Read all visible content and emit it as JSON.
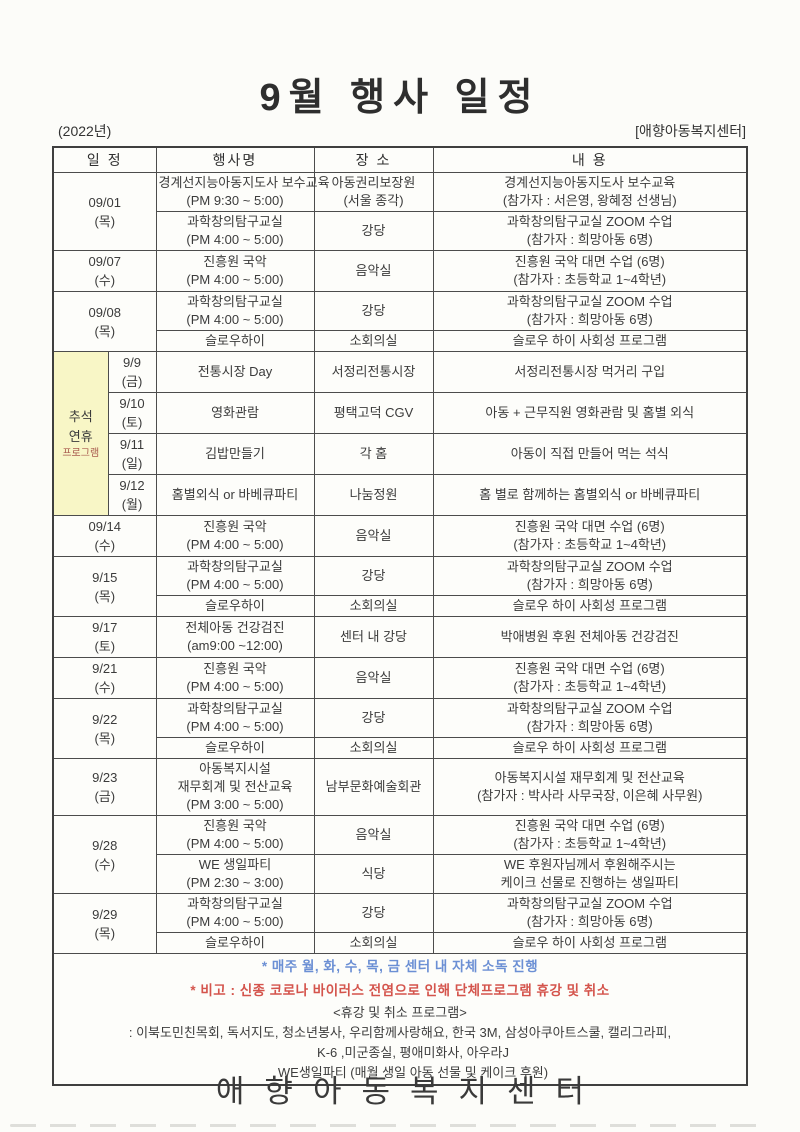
{
  "page": {
    "title": "9월 행사 일정",
    "year_label": "(2022년)",
    "org_label": "[애향아동복지센터]",
    "footer_org": "애향아동복지센터"
  },
  "colors": {
    "note_blue": "#6b8fd4",
    "note_red": "#d4544c",
    "holiday_bg": "#f8f6c6",
    "holiday_label_red": "#a85a4e"
  },
  "table": {
    "headers": {
      "date": "일 정",
      "event": "행사명",
      "place": "장 소",
      "detail": "내 용"
    },
    "holiday_label": [
      "추석",
      "연휴",
      "프로그램"
    ],
    "groups": [
      {
        "date": "09/01",
        "day": "(목)",
        "events": [
          {
            "name": [
              "경계선지능아동지도사 보수교육",
              "(PM 9:30 ~ 5:00)"
            ],
            "place": [
              "아동권리보장원",
              "(서울 종각)"
            ],
            "detail": [
              "경계선지능아동지도사 보수교육",
              "(참가자 : 서은영, 왕혜정 선생님)"
            ]
          },
          {
            "name": [
              "과학창의탐구교실",
              "(PM 4:00 ~ 5:00)"
            ],
            "place": [
              "강당"
            ],
            "detail": [
              "과학창의탐구교실 ZOOM 수업",
              "(참가자 : 희망아동 6명)"
            ]
          }
        ]
      },
      {
        "date": "09/07",
        "day": "(수)",
        "events": [
          {
            "name": [
              "진흥원 국악",
              "(PM 4:00 ~ 5:00)"
            ],
            "place": [
              "음악실"
            ],
            "detail": [
              "진흥원 국악 대면 수업 (6명)",
              "(참가자 : 초등학교 1~4학년)"
            ]
          }
        ]
      },
      {
        "date": "09/08",
        "day": "(목)",
        "events": [
          {
            "name": [
              "과학창의탐구교실",
              "(PM 4:00 ~ 5:00)"
            ],
            "place": [
              "강당"
            ],
            "detail": [
              "과학창의탐구교실 ZOOM 수업",
              "(참가자 : 희망아동 6명)"
            ]
          },
          {
            "name": [
              "슬로우하이"
            ],
            "place": [
              "소회의실"
            ],
            "detail": [
              "슬로우 하이 사회성 프로그램"
            ]
          }
        ]
      },
      {
        "holiday": true,
        "date": "9/9",
        "day": "(금)",
        "events": [
          {
            "name": [
              "전통시장 Day"
            ],
            "place": [
              "서정리전통시장"
            ],
            "detail": [
              "서정리전통시장 먹거리 구입"
            ]
          }
        ]
      },
      {
        "holiday": true,
        "date": "9/10",
        "day": "(토)",
        "events": [
          {
            "name": [
              "영화관람"
            ],
            "place": [
              "평택고덕 CGV"
            ],
            "detail": [
              "아동 + 근무직원 영화관람 및 홈별 외식"
            ]
          }
        ]
      },
      {
        "holiday": true,
        "date": "9/11",
        "day": "(일)",
        "events": [
          {
            "name": [
              "김밥만들기"
            ],
            "place": [
              "각 홈"
            ],
            "detail": [
              "아동이 직접 만들어 먹는 석식"
            ]
          }
        ]
      },
      {
        "holiday": true,
        "date": "9/12",
        "day": "(월)",
        "events": [
          {
            "name": [
              "홈별외식 or 바베큐파티"
            ],
            "place": [
              "나눔정원"
            ],
            "detail": [
              "홈 별로 함께하는 홈별외식 or 바베큐파티"
            ]
          }
        ]
      },
      {
        "date": "09/14",
        "day": "(수)",
        "events": [
          {
            "name": [
              "진흥원 국악",
              "(PM 4:00 ~ 5:00)"
            ],
            "place": [
              "음악실"
            ],
            "detail": [
              "진흥원 국악 대면 수업 (6명)",
              "(참가자 : 초등학교 1~4학년)"
            ]
          }
        ]
      },
      {
        "date": "9/15",
        "day": "(목)",
        "events": [
          {
            "name": [
              "과학창의탐구교실",
              "(PM 4:00 ~ 5:00)"
            ],
            "place": [
              "강당"
            ],
            "detail": [
              "과학창의탐구교실 ZOOM 수업",
              "(참가자 : 희망아동 6명)"
            ]
          },
          {
            "name": [
              "슬로우하이"
            ],
            "place": [
              "소회의실"
            ],
            "detail": [
              "슬로우 하이 사회성 프로그램"
            ]
          }
        ]
      },
      {
        "date": "9/17",
        "day": "(토)",
        "events": [
          {
            "name": [
              "전체아동 건강검진",
              "(am9:00 ~12:00)"
            ],
            "place": [
              "센터 내 강당"
            ],
            "detail": [
              "박애병원 후원 전체아동 건강검진"
            ]
          }
        ]
      },
      {
        "date": "9/21",
        "day": "(수)",
        "events": [
          {
            "name": [
              "진흥원 국악",
              "(PM 4:00 ~ 5:00)"
            ],
            "place": [
              "음악실"
            ],
            "detail": [
              "진흥원 국악 대면 수업 (6명)",
              "(참가자 : 초등학교 1~4학년)"
            ]
          }
        ]
      },
      {
        "date": "9/22",
        "day": "(목)",
        "events": [
          {
            "name": [
              "과학창의탐구교실",
              "(PM 4:00 ~ 5:00)"
            ],
            "place": [
              "강당"
            ],
            "detail": [
              "과학창의탐구교실 ZOOM 수업",
              "(참가자 : 희망아동 6명)"
            ]
          },
          {
            "name": [
              "슬로우하이"
            ],
            "place": [
              "소회의실"
            ],
            "detail": [
              "슬로우 하이 사회성 프로그램"
            ]
          }
        ]
      },
      {
        "date": "9/23",
        "day": "(금)",
        "events": [
          {
            "name": [
              "아동복지시설",
              "재무회계 및 전산교육",
              "(PM 3:00 ~ 5:00)"
            ],
            "place": [
              "남부문화예술회관"
            ],
            "detail": [
              "아동복지시설 재무회계 및 전산교육",
              "(참가자 : 박사라 사무국장, 이은혜 사무원)"
            ]
          }
        ]
      },
      {
        "date": "9/28",
        "day": "(수)",
        "events": [
          {
            "name": [
              "진흥원 국악",
              "(PM 4:00 ~ 5:00)"
            ],
            "place": [
              "음악실"
            ],
            "detail": [
              "진흥원 국악 대면 수업 (6명)",
              "(참가자 : 초등학교 1~4학년)"
            ]
          },
          {
            "name": [
              "WE 생일파티",
              "(PM 2:30 ~ 3:00)"
            ],
            "place": [
              "식당"
            ],
            "detail": [
              "WE 후원자님께서 후원해주시는",
              "케이크 선물로 진행하는 생일파티"
            ]
          }
        ]
      },
      {
        "date": "9/29",
        "day": "(목)",
        "events": [
          {
            "name": [
              "과학창의탐구교실",
              "(PM 4:00 ~ 5:00)"
            ],
            "place": [
              "강당"
            ],
            "detail": [
              "과학창의탐구교실 ZOOM 수업",
              "(참가자 : 희망아동 6명)"
            ]
          },
          {
            "name": [
              "슬로우하이"
            ],
            "place": [
              "소회의실"
            ],
            "detail": [
              "슬로우 하이 사회성 프로그램"
            ]
          }
        ]
      }
    ],
    "notes": {
      "line1": "* 매주 월, 화, 수, 목, 금 센터 내 자체 소독 진행",
      "line2": "* 비고 : 신종 코로나 바이러스 전염으로 인해 단체프로그램 휴강 및 취소",
      "line3": "<휴강 및 취소 프로그램>",
      "line4": ": 이북도민친목회, 독서지도, 청소년봉사, 우리함께사랑해요, 한국 3M, 삼성아쿠아트스쿨, 캘리그라피,",
      "line5": "K-6 ,미군종실, 평애미화사, 아우라J",
      "line6": "WE생일파티 (매월 생일 아동 선물 및 케이크 후원)"
    }
  }
}
